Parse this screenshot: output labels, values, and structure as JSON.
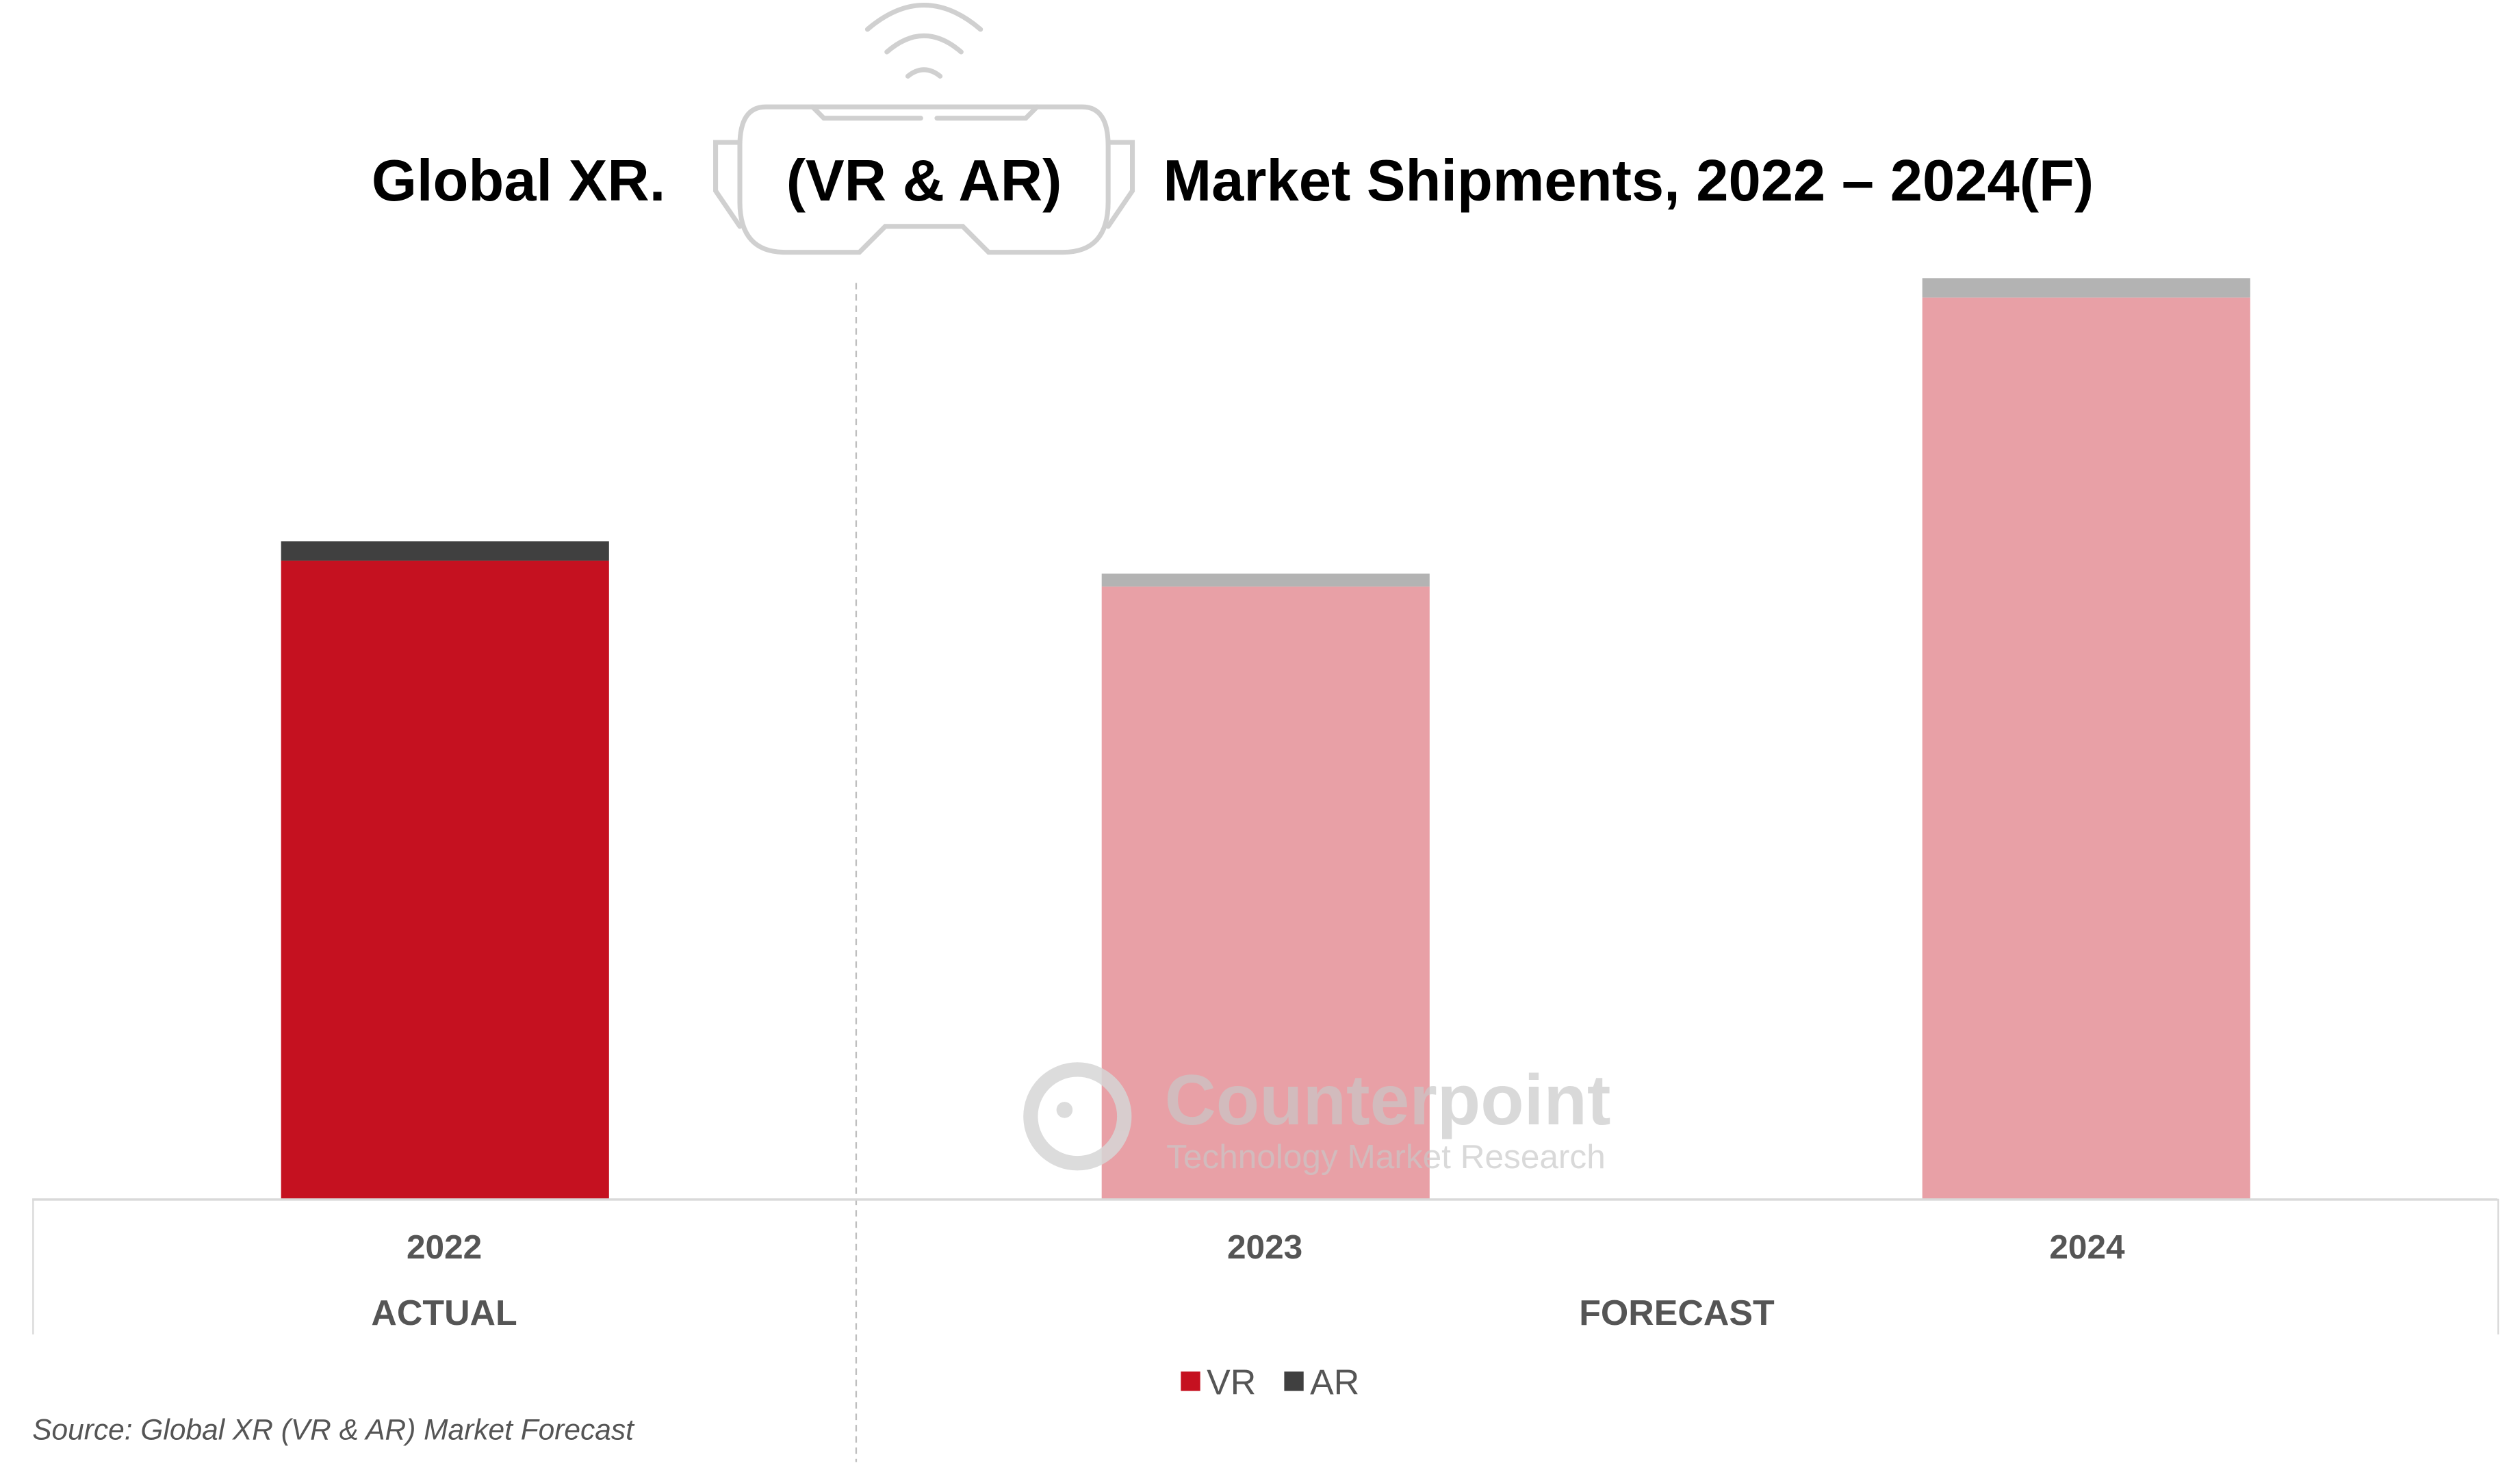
{
  "chart_data": {
    "type": "bar",
    "stacked": true,
    "title_parts": [
      "Global XR.",
      "(VR & AR)",
      "Market Shipments, 2022 – 2024(F)"
    ],
    "categories": [
      "2022",
      "2023",
      "2024"
    ],
    "groups": [
      {
        "label": "ACTUAL",
        "categories": [
          "2022"
        ]
      },
      {
        "label": "FORECAST",
        "categories": [
          "2023",
          "2024"
        ]
      }
    ],
    "series": [
      {
        "name": "VR",
        "values": [
          395,
          379,
          558
        ],
        "color": "#c51120",
        "forecast_color": "#e8a0a6"
      },
      {
        "name": "AR",
        "values": [
          12,
          8,
          12
        ],
        "color": "#404040",
        "forecast_color": "#b3b3b3"
      }
    ],
    "value_note_unlabeled": true,
    "ylim": [
      0,
      580
    ],
    "y_axis_shown": false,
    "grid": false,
    "legend_placement": "bottom",
    "source": "Source: Global XR (VR & AR) Market Forecast",
    "watermark": {
      "brand": "Counterpoint",
      "tagline": "Technology Market Research"
    },
    "icon": "vr-headset-icon"
  }
}
